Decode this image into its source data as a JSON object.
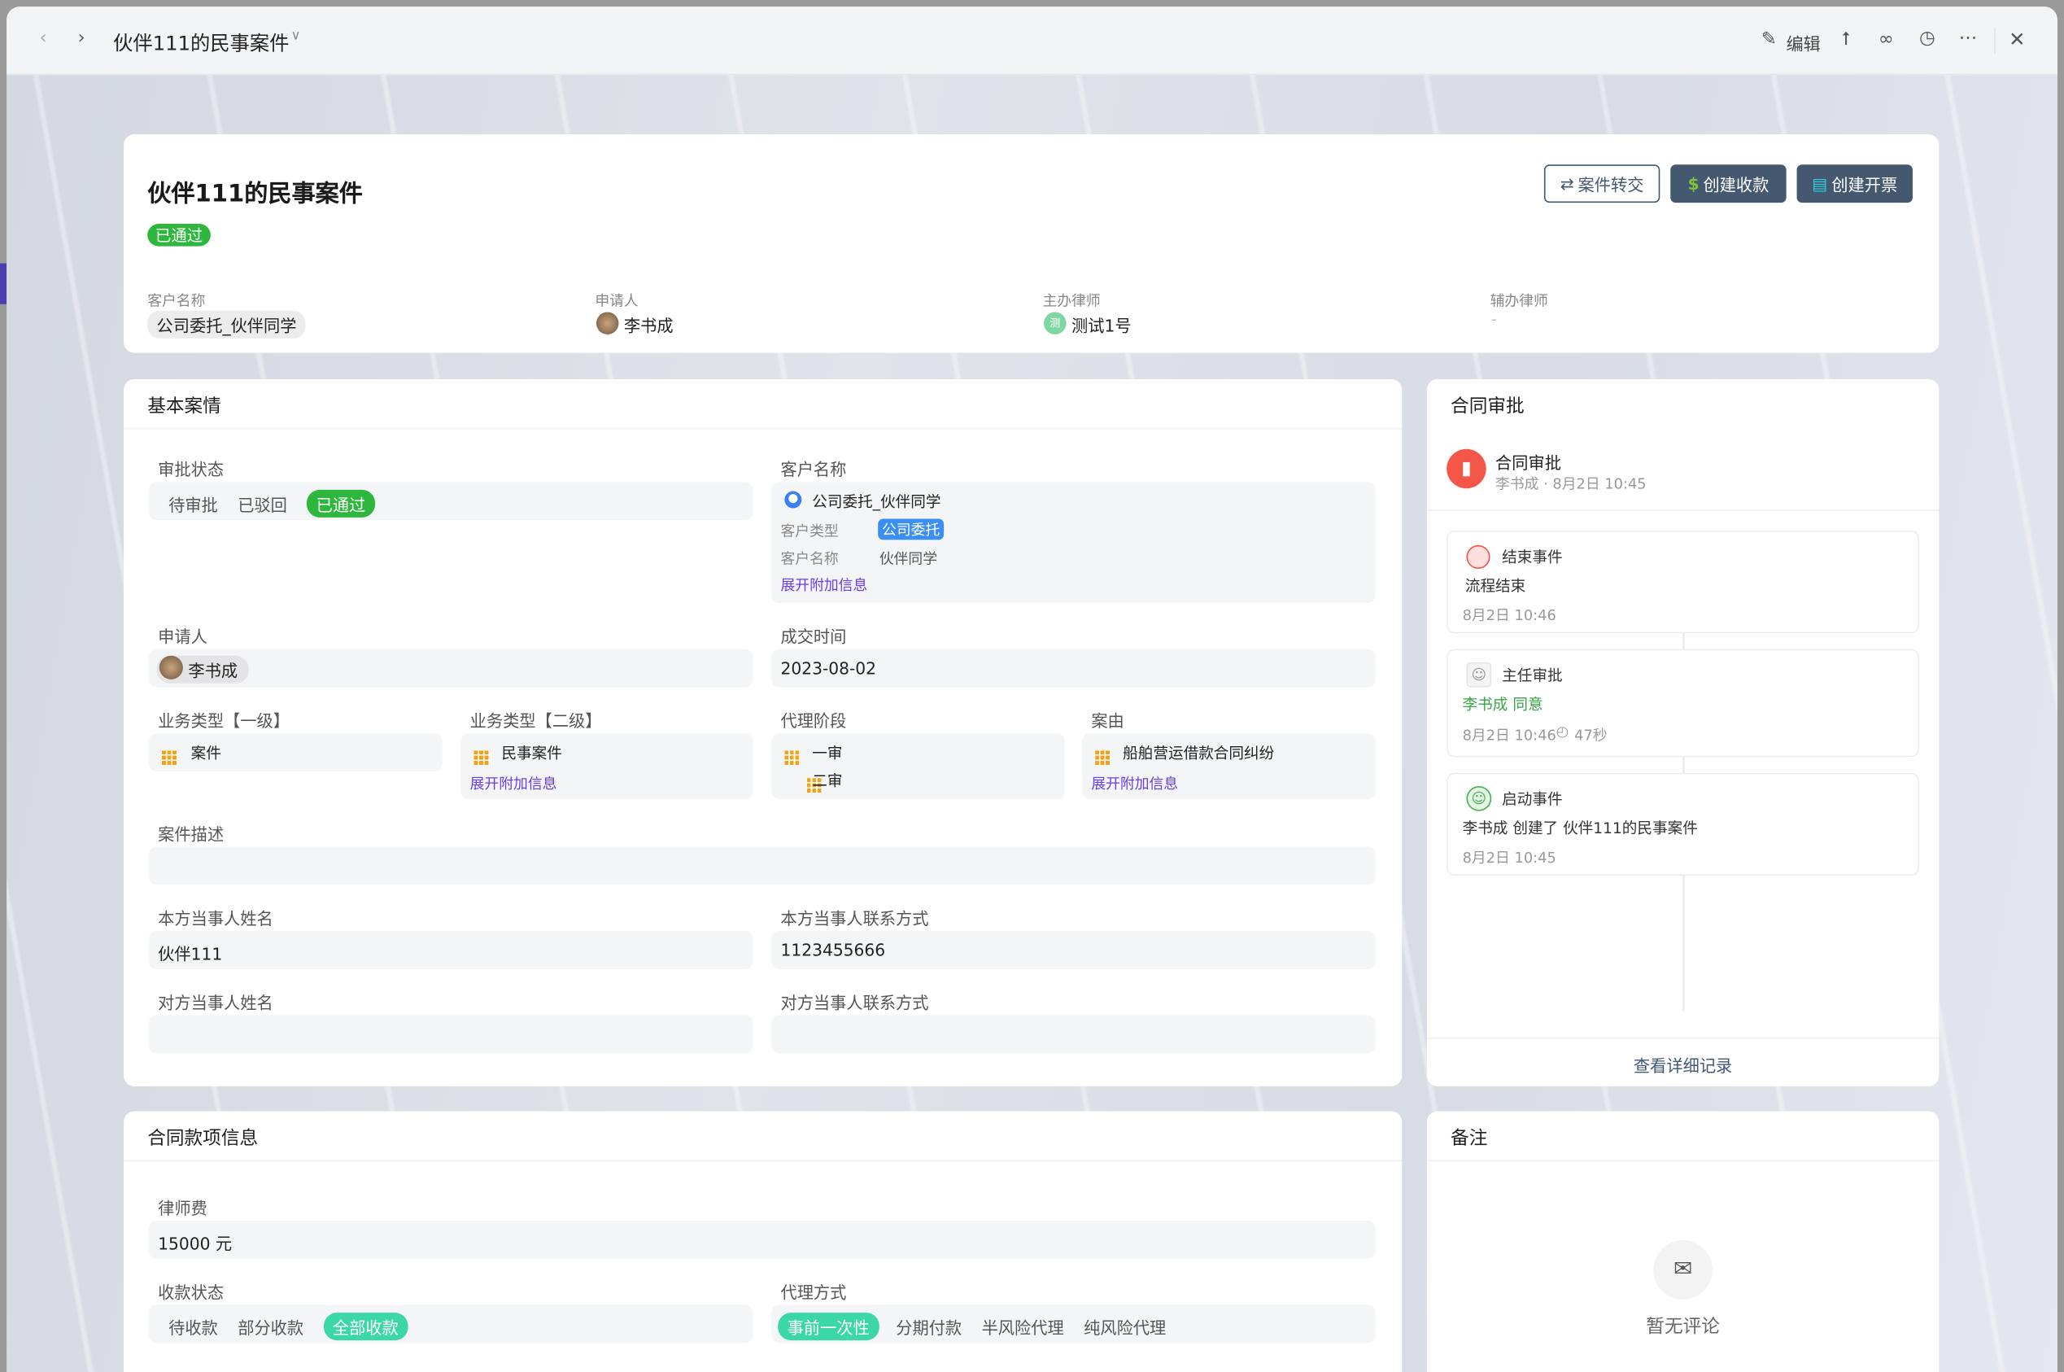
{
  "window": {
    "title": "伙伴111的民事案件",
    "edit_label": "编辑"
  },
  "header": {
    "title": "伙伴111的民事案件",
    "status_badge": "已通过",
    "buttons": {
      "transfer": "案件转交",
      "create_payment": "创建收款",
      "create_invoice": "创建开票"
    },
    "fields": [
      {
        "label": "客户名称",
        "value": "公司委托_伙伴同学"
      },
      {
        "label": "申请人",
        "value": "李书成"
      },
      {
        "label": "主办律师",
        "value": "测试1号",
        "avatar_text": "测"
      },
      {
        "label": "辅办律师",
        "value": "-"
      }
    ]
  },
  "basic": {
    "title": "基本案情",
    "approval_status": {
      "label": "审批状态",
      "options": [
        "待审批",
        "已驳回",
        "已通过"
      ],
      "selected": "已通过"
    },
    "customer": {
      "label": "客户名称",
      "name": "公司委托_伙伴同学",
      "type_label": "客户类型",
      "type_value": "公司委托",
      "name_label": "客户名称",
      "name_value": "伙伴同学",
      "expand": "展开附加信息"
    },
    "applicant": {
      "label": "申请人",
      "value": "李书成"
    },
    "deal_time": {
      "label": "成交时间",
      "value": "2023-08-02"
    },
    "biz_type1": {
      "label": "业务类型【一级】",
      "value": "案件"
    },
    "biz_type2": {
      "label": "业务类型【二级】",
      "value": "民事案件",
      "expand": "展开附加信息"
    },
    "agency_stage": {
      "label": "代理阶段",
      "values": [
        "一审",
        "二审"
      ]
    },
    "cause": {
      "label": "案由",
      "value": "船舶营运借款合同纠纷",
      "expand": "展开附加信息"
    },
    "description": {
      "label": "案件描述",
      "value": ""
    },
    "own_party_name": {
      "label": "本方当事人姓名",
      "value": "伙伴111"
    },
    "own_party_contact": {
      "label": "本方当事人联系方式",
      "value": "1123455666"
    },
    "other_party_name": {
      "label": "对方当事人姓名",
      "value": ""
    },
    "other_party_contact": {
      "label": "对方当事人联系方式",
      "value": ""
    }
  },
  "approval": {
    "title": "合同审批",
    "flow_title": "合同审批",
    "flow_sub": "李书成 · 8月2日 10:45",
    "events": [
      {
        "title": "结束事件",
        "desc": "流程结束",
        "time": "8月2日 10:46"
      },
      {
        "title": "主任审批",
        "desc": "李书成 同意",
        "time": "8月2日 10:46",
        "duration": "47秒"
      },
      {
        "title": "启动事件",
        "desc": "李书成 创建了 伙伴111的民事案件",
        "time": "8月2日 10:45"
      }
    ],
    "view_detail": "查看详细记录"
  },
  "payment": {
    "title": "合同款项信息",
    "fee": {
      "label": "律师费",
      "value": "15000 元"
    },
    "status": {
      "label": "收款状态",
      "options": [
        "待收款",
        "部分收款",
        "全部收款"
      ],
      "selected": "全部收款"
    },
    "mode": {
      "label": "代理方式",
      "options": [
        "事前一次性",
        "分期付款",
        "半风险代理",
        "纯风险代理"
      ],
      "selected": "事前一次性"
    }
  },
  "notes": {
    "title": "备注",
    "empty": "暂无评论"
  },
  "colors": {
    "green": "#2db83d",
    "teal": "#3bd8a5",
    "blue": "#3b8ff2",
    "dark_button": "#44586f",
    "link": "#6a3cf0"
  }
}
